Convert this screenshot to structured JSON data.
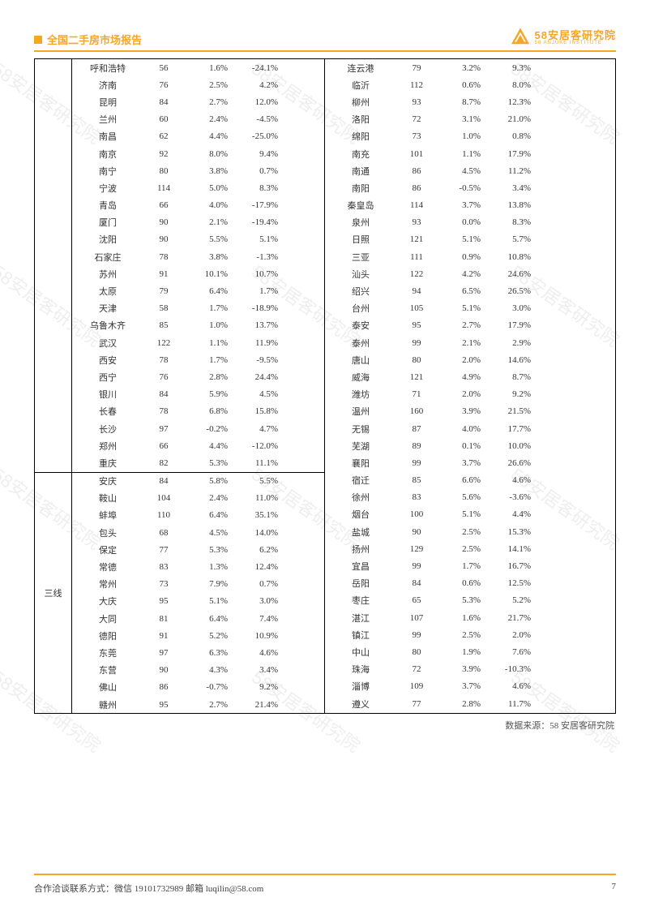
{
  "header": {
    "title": "全国二手房市场报告",
    "brand_cn": "58安居客研究院",
    "brand_en": "58 ANJUKE INSTITUTE"
  },
  "colors": {
    "accent": "#f5a623",
    "text": "#333333",
    "border": "#000000",
    "watermark": "rgba(160,160,160,0.18)"
  },
  "watermark_text": "58安居客研究院",
  "table": {
    "left": {
      "blocks": [
        {
          "label": "",
          "rows": [
            [
              "呼和浩特",
              "56",
              "1.6%",
              "-24.1%"
            ],
            [
              "济南",
              "76",
              "2.5%",
              "4.2%"
            ],
            [
              "昆明",
              "84",
              "2.7%",
              "12.0%"
            ],
            [
              "兰州",
              "60",
              "2.4%",
              "-4.5%"
            ],
            [
              "南昌",
              "62",
              "4.4%",
              "-25.0%"
            ],
            [
              "南京",
              "92",
              "8.0%",
              "9.4%"
            ],
            [
              "南宁",
              "80",
              "3.8%",
              "0.7%"
            ],
            [
              "宁波",
              "114",
              "5.0%",
              "8.3%"
            ],
            [
              "青岛",
              "66",
              "4.0%",
              "-17.9%"
            ],
            [
              "厦门",
              "90",
              "2.1%",
              "-19.4%"
            ],
            [
              "沈阳",
              "90",
              "5.5%",
              "5.1%"
            ],
            [
              "石家庄",
              "78",
              "3.8%",
              "-1.3%"
            ],
            [
              "苏州",
              "91",
              "10.1%",
              "10.7%"
            ],
            [
              "太原",
              "79",
              "6.4%",
              "1.7%"
            ],
            [
              "天津",
              "58",
              "1.7%",
              "-18.9%"
            ],
            [
              "乌鲁木齐",
              "85",
              "1.0%",
              "13.7%"
            ],
            [
              "武汉",
              "122",
              "1.1%",
              "11.9%"
            ],
            [
              "西安",
              "78",
              "1.7%",
              "-9.5%"
            ],
            [
              "西宁",
              "76",
              "2.8%",
              "24.4%"
            ],
            [
              "银川",
              "84",
              "5.9%",
              "4.5%"
            ],
            [
              "长春",
              "78",
              "6.8%",
              "15.8%"
            ],
            [
              "长沙",
              "97",
              "-0.2%",
              "4.7%"
            ],
            [
              "郑州",
              "66",
              "4.4%",
              "-12.0%"
            ],
            [
              "重庆",
              "82",
              "5.3%",
              "11.1%"
            ]
          ]
        },
        {
          "label": "三线",
          "rows": [
            [
              "安庆",
              "84",
              "5.8%",
              "5.5%"
            ],
            [
              "鞍山",
              "104",
              "2.4%",
              "11.0%"
            ],
            [
              "蚌埠",
              "110",
              "6.4%",
              "35.1%"
            ],
            [
              "包头",
              "68",
              "4.5%",
              "14.0%"
            ],
            [
              "保定",
              "77",
              "5.3%",
              "6.2%"
            ],
            [
              "常德",
              "83",
              "1.3%",
              "12.4%"
            ],
            [
              "常州",
              "73",
              "7.9%",
              "0.7%"
            ],
            [
              "大庆",
              "95",
              "5.1%",
              "3.0%"
            ],
            [
              "大同",
              "81",
              "6.4%",
              "7.4%"
            ],
            [
              "德阳",
              "91",
              "5.2%",
              "10.9%"
            ],
            [
              "东莞",
              "97",
              "6.3%",
              "4.6%"
            ],
            [
              "东营",
              "90",
              "4.3%",
              "3.4%"
            ],
            [
              "佛山",
              "86",
              "-0.7%",
              "9.2%"
            ],
            [
              "赣州",
              "95",
              "2.7%",
              "21.4%"
            ]
          ]
        }
      ]
    },
    "right": {
      "rows": [
        [
          "连云港",
          "79",
          "3.2%",
          "9.3%"
        ],
        [
          "临沂",
          "112",
          "0.6%",
          "8.0%"
        ],
        [
          "柳州",
          "93",
          "8.7%",
          "12.3%"
        ],
        [
          "洛阳",
          "72",
          "3.1%",
          "21.0%"
        ],
        [
          "绵阳",
          "73",
          "1.0%",
          "0.8%"
        ],
        [
          "南充",
          "101",
          "1.1%",
          "17.9%"
        ],
        [
          "南通",
          "86",
          "4.5%",
          "11.2%"
        ],
        [
          "南阳",
          "86",
          "-0.5%",
          "3.4%"
        ],
        [
          "秦皇岛",
          "114",
          "3.7%",
          "13.8%"
        ],
        [
          "泉州",
          "93",
          "0.0%",
          "8.3%"
        ],
        [
          "日照",
          "121",
          "5.1%",
          "5.7%"
        ],
        [
          "三亚",
          "111",
          "0.9%",
          "10.8%"
        ],
        [
          "汕头",
          "122",
          "4.2%",
          "24.6%"
        ],
        [
          "绍兴",
          "94",
          "6.5%",
          "26.5%"
        ],
        [
          "台州",
          "105",
          "5.1%",
          "3.0%"
        ],
        [
          "泰安",
          "95",
          "2.7%",
          "17.9%"
        ],
        [
          "泰州",
          "99",
          "2.1%",
          "2.9%"
        ],
        [
          "唐山",
          "80",
          "2.0%",
          "14.6%"
        ],
        [
          "威海",
          "121",
          "4.9%",
          "8.7%"
        ],
        [
          "潍坊",
          "71",
          "2.0%",
          "9.2%"
        ],
        [
          "温州",
          "160",
          "3.9%",
          "21.5%"
        ],
        [
          "无锡",
          "87",
          "4.0%",
          "17.7%"
        ],
        [
          "芜湖",
          "89",
          "0.1%",
          "10.0%"
        ],
        [
          "襄阳",
          "99",
          "3.7%",
          "26.6%"
        ],
        [
          "宿迁",
          "85",
          "6.6%",
          "4.6%"
        ],
        [
          "徐州",
          "83",
          "5.6%",
          "-3.6%"
        ],
        [
          "烟台",
          "100",
          "5.1%",
          "4.4%"
        ],
        [
          "盐城",
          "90",
          "2.5%",
          "15.3%"
        ],
        [
          "扬州",
          "129",
          "2.5%",
          "14.1%"
        ],
        [
          "宜昌",
          "99",
          "1.7%",
          "16.7%"
        ],
        [
          "岳阳",
          "84",
          "0.6%",
          "12.5%"
        ],
        [
          "枣庄",
          "65",
          "5.3%",
          "5.2%"
        ],
        [
          "湛江",
          "107",
          "1.6%",
          "21.7%"
        ],
        [
          "镇江",
          "99",
          "2.5%",
          "2.0%"
        ],
        [
          "中山",
          "80",
          "1.9%",
          "7.6%"
        ],
        [
          "珠海",
          "72",
          "3.9%",
          "-10.3%"
        ],
        [
          "淄博",
          "109",
          "3.7%",
          "4.6%"
        ],
        [
          "遵义",
          "77",
          "2.8%",
          "11.7%"
        ]
      ]
    }
  },
  "source": "数据来源：58 安居客研究院",
  "footer": {
    "contact": "合作洽谈联系方式：微信 19101732989    邮箱 luqilin@58.com",
    "page": "7"
  }
}
